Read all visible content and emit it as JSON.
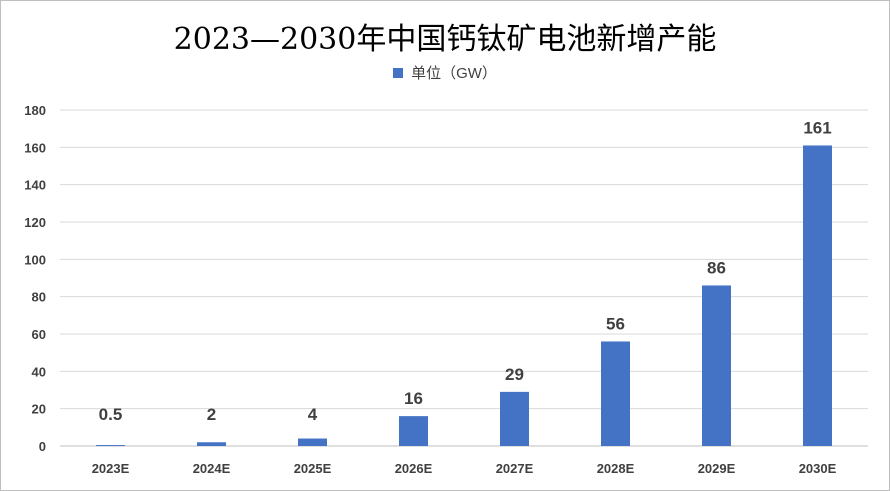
{
  "chart_data": {
    "type": "bar",
    "title": "2023—2030年中国钙钛矿电池新增产能",
    "legend": {
      "position": "top",
      "entries": [
        "单位（GW）"
      ]
    },
    "series": [
      {
        "name": "单位（GW）",
        "color": "#4472c4",
        "values": [
          0.5,
          2,
          4,
          16,
          29,
          56,
          86,
          161
        ]
      }
    ],
    "categories": [
      "2023E",
      "2024E",
      "2025E",
      "2026E",
      "2027E",
      "2028E",
      "2029E",
      "2030E"
    ],
    "data_labels": [
      "0.5",
      "2",
      "4",
      "16",
      "29",
      "56",
      "86",
      "161"
    ],
    "ylim": [
      0,
      180
    ],
    "yticks": [
      0,
      20,
      40,
      60,
      80,
      100,
      120,
      140,
      160,
      180
    ],
    "grid": true,
    "xlabel": "",
    "ylabel": ""
  }
}
